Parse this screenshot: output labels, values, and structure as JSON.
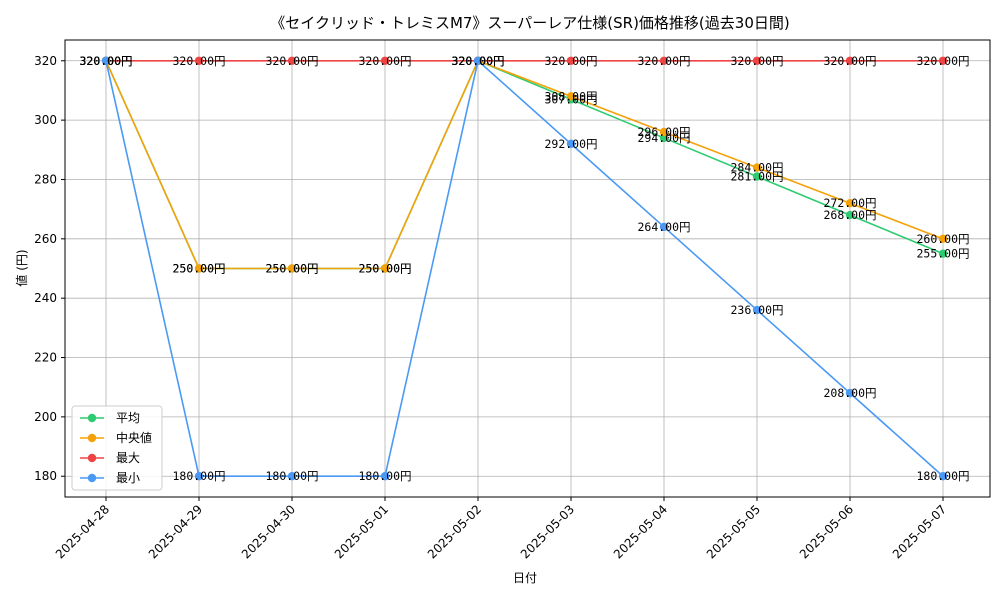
{
  "chart_data": {
    "type": "line",
    "title": "《セイクリッド・トレミスM7》スーパーレア仕様(SR)価格推移(過去30日間)",
    "xlabel": "日付",
    "ylabel": "値 (円)",
    "ylim": [
      173,
      327
    ],
    "yticks": [
      180,
      200,
      220,
      240,
      260,
      280,
      300,
      320
    ],
    "categories": [
      "2025-04-28",
      "2025-04-29",
      "2025-04-30",
      "2025-05-01",
      "2025-05-02",
      "2025-05-03",
      "2025-05-04",
      "2025-05-05",
      "2025-05-06",
      "2025-05-07"
    ],
    "grid": true,
    "legend_position": "lower-left",
    "label_suffix": "円",
    "series": [
      {
        "name": "平均",
        "color": "#2ecc71",
        "values": [
          320,
          250,
          250,
          250,
          320,
          307,
          294,
          281,
          268,
          255
        ]
      },
      {
        "name": "中央値",
        "color": "#f5a20a",
        "values": [
          320,
          250,
          250,
          250,
          320,
          308,
          296,
          284,
          272,
          260
        ]
      },
      {
        "name": "最大",
        "color": "#ef4444",
        "values": [
          320,
          320,
          320,
          320,
          320,
          320,
          320,
          320,
          320,
          320
        ]
      },
      {
        "name": "最小",
        "color": "#4a9af5",
        "values": [
          320,
          180,
          180,
          180,
          320,
          292,
          264,
          236,
          208,
          180
        ]
      }
    ]
  }
}
